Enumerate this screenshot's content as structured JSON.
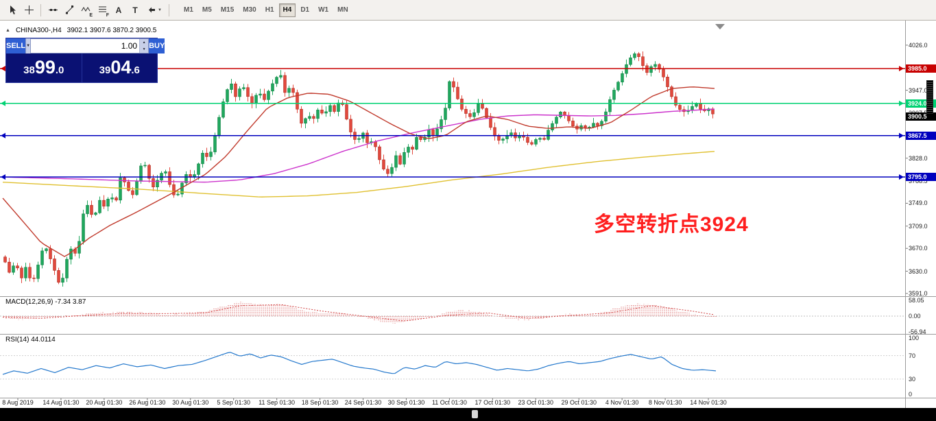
{
  "toolbar": {
    "letters": {
      "text_tool": "A",
      "label_tool": "T",
      "elliott": "E",
      "fibonacci": "F"
    },
    "timeframes": [
      "M1",
      "M5",
      "M15",
      "M30",
      "H1",
      "H4",
      "D1",
      "W1",
      "MN"
    ],
    "active_timeframe": "H4"
  },
  "symbol_header": {
    "symbol": "CHINA300-,H4",
    "ohlc": "3902.1 3907.6 3870.2 3900.5"
  },
  "trade_panel": {
    "sell_label": "SELL",
    "buy_label": "BUY",
    "volume": "1.00",
    "sell_price": {
      "p1": "38",
      "p2": "99",
      "p3": ".0"
    },
    "buy_price": {
      "p1": "39",
      "p2": "04",
      "p3": ".6"
    }
  },
  "annotation": {
    "text": "多空转折点3924",
    "color": "#FF1E1E"
  },
  "levels": [
    {
      "label": "3985.0",
      "value": 3985.0,
      "color": "#C80000"
    },
    {
      "label": "3924.0",
      "value": 3924.0,
      "color": "#00D273"
    },
    {
      "label": "3867.5",
      "value": 3867.5,
      "color": "#0000BE"
    },
    {
      "label": "3795.0",
      "value": 3795.0,
      "color": "#0000BE"
    }
  ],
  "bid": {
    "label": "3900.5",
    "value": 3900.5,
    "bg": "#000000"
  },
  "y_axis": [
    {
      "t": "4026.0",
      "v": 4026
    },
    {
      "t": "3986.5",
      "v": 3986.5
    },
    {
      "t": "3947.0",
      "v": 3947
    },
    {
      "t": "3907.5",
      "v": 3907.5
    },
    {
      "t": "3868.0",
      "v": 3868
    },
    {
      "t": "3828.0",
      "v": 3828
    },
    {
      "t": "3788.5",
      "v": 3788.5
    },
    {
      "t": "3749.0",
      "v": 3749
    },
    {
      "t": "3709.0",
      "v": 3709
    },
    {
      "t": "3670.0",
      "v": 3670
    },
    {
      "t": "3630.0",
      "v": 3630
    },
    {
      "t": "3591.0",
      "v": 3591
    }
  ],
  "x_axis": [
    "8 Aug 2019",
    "14 Aug 01:30",
    "20 Aug 01:30",
    "26 Aug 01:30",
    "30 Aug 01:30",
    "5 Sep 01:30",
    "11 Sep 01:30",
    "18 Sep 01:30",
    "24 Sep 01:30",
    "30 Sep 01:30",
    "11 Oct 01:30",
    "17 Oct 01:30",
    "23 Oct 01:30",
    "29 Oct 01:30",
    "4 Nov 01:30",
    "8 Nov 01:30",
    "14 Nov 01:30"
  ],
  "colors": {
    "up": "#1FA75D",
    "up_edge": "#0f7a3e",
    "down": "#E2483D",
    "down_edge": "#a32418",
    "ma_fast": "#C0392B",
    "ma_mid": "#CC33CC",
    "ma_slow": "#E0C030",
    "rsi": "#2277CC",
    "macd": "#D04040"
  },
  "chart_data": {
    "type": "candlestick",
    "symbol": "CHINA300-",
    "timeframe": "H4",
    "price_path": [
      [
        4,
        3655
      ],
      [
        14,
        3625
      ],
      [
        22,
        3648
      ],
      [
        30,
        3615
      ],
      [
        38,
        3640
      ],
      [
        46,
        3605
      ],
      [
        56,
        3645
      ],
      [
        64,
        3678
      ],
      [
        72,
        3655
      ],
      [
        80,
        3628
      ],
      [
        88,
        3600
      ],
      [
        96,
        3648
      ],
      [
        104,
        3672
      ],
      [
        112,
        3655
      ],
      [
        120,
        3728
      ],
      [
        128,
        3748
      ],
      [
        136,
        3718
      ],
      [
        144,
        3756
      ],
      [
        152,
        3742
      ],
      [
        160,
        3765
      ],
      [
        168,
        3748
      ],
      [
        176,
        3800
      ],
      [
        184,
        3778
      ],
      [
        192,
        3760
      ],
      [
        200,
        3792
      ],
      [
        208,
        3828
      ],
      [
        216,
        3795
      ],
      [
        224,
        3775
      ],
      [
        232,
        3798
      ],
      [
        240,
        3808
      ],
      [
        248,
        3778
      ],
      [
        256,
        3755
      ],
      [
        264,
        3782
      ],
      [
        272,
        3802
      ],
      [
        280,
        3790
      ],
      [
        288,
        3815
      ],
      [
        296,
        3840
      ],
      [
        304,
        3825
      ],
      [
        312,
        3862
      ],
      [
        320,
        3905
      ],
      [
        328,
        3940
      ],
      [
        336,
        3962
      ],
      [
        344,
        3932
      ],
      [
        352,
        3960
      ],
      [
        360,
        3938
      ],
      [
        368,
        3922
      ],
      [
        376,
        3948
      ],
      [
        384,
        3928
      ],
      [
        392,
        3948
      ],
      [
        400,
        3965
      ],
      [
        408,
        3978
      ],
      [
        416,
        3938
      ],
      [
        424,
        3958
      ],
      [
        432,
        3918
      ],
      [
        440,
        3885
      ],
      [
        448,
        3905
      ],
      [
        456,
        3895
      ],
      [
        464,
        3915
      ],
      [
        472,
        3902
      ],
      [
        480,
        3922
      ],
      [
        488,
        3908
      ],
      [
        496,
        3935
      ],
      [
        504,
        3900
      ],
      [
        512,
        3870
      ],
      [
        520,
        3855
      ],
      [
        528,
        3875
      ],
      [
        536,
        3852
      ],
      [
        544,
        3860
      ],
      [
        552,
        3828
      ],
      [
        560,
        3806
      ],
      [
        568,
        3798
      ],
      [
        576,
        3835
      ],
      [
        584,
        3815
      ],
      [
        592,
        3852
      ],
      [
        600,
        3840
      ],
      [
        608,
        3868
      ],
      [
        616,
        3856
      ],
      [
        624,
        3880
      ],
      [
        632,
        3865
      ],
      [
        640,
        3888
      ],
      [
        648,
        3908
      ],
      [
        656,
        3970
      ],
      [
        664,
        3942
      ],
      [
        672,
        3915
      ],
      [
        680,
        3905
      ],
      [
        688,
        3898
      ],
      [
        696,
        3924
      ],
      [
        704,
        3914
      ],
      [
        712,
        3890
      ],
      [
        720,
        3868
      ],
      [
        728,
        3858
      ],
      [
        736,
        3864
      ],
      [
        744,
        3874
      ],
      [
        752,
        3862
      ],
      [
        760,
        3870
      ],
      [
        768,
        3856
      ],
      [
        776,
        3852
      ],
      [
        784,
        3866
      ],
      [
        792,
        3858
      ],
      [
        800,
        3880
      ],
      [
        808,
        3894
      ],
      [
        816,
        3910
      ],
      [
        824,
        3902
      ],
      [
        832,
        3888
      ],
      [
        840,
        3878
      ],
      [
        848,
        3886
      ],
      [
        856,
        3878
      ],
      [
        864,
        3890
      ],
      [
        872,
        3884
      ],
      [
        880,
        3898
      ],
      [
        888,
        3928
      ],
      [
        896,
        3950
      ],
      [
        904,
        3968
      ],
      [
        912,
        3990
      ],
      [
        920,
        4006
      ],
      [
        928,
        4014
      ],
      [
        936,
        3992
      ],
      [
        944,
        3976
      ],
      [
        952,
        3996
      ],
      [
        960,
        3986
      ],
      [
        968,
        3968
      ],
      [
        976,
        3944
      ],
      [
        984,
        3922
      ],
      [
        992,
        3912
      ],
      [
        1000,
        3908
      ],
      [
        1008,
        3918
      ],
      [
        1016,
        3924
      ],
      [
        1024,
        3908
      ],
      [
        1032,
        3916
      ],
      [
        1040,
        3904
      ],
      [
        1044,
        3900.5
      ]
    ],
    "ma_red": [
      [
        4,
        3758
      ],
      [
        30,
        3722
      ],
      [
        60,
        3680
      ],
      [
        95,
        3655
      ],
      [
        130,
        3688
      ],
      [
        160,
        3710
      ],
      [
        200,
        3734
      ],
      [
        250,
        3766
      ],
      [
        300,
        3800
      ],
      [
        330,
        3832
      ],
      [
        360,
        3875
      ],
      [
        390,
        3916
      ],
      [
        420,
        3934
      ],
      [
        450,
        3942
      ],
      [
        480,
        3940
      ],
      [
        510,
        3928
      ],
      [
        540,
        3908
      ],
      [
        570,
        3888
      ],
      [
        600,
        3870
      ],
      [
        625,
        3862
      ],
      [
        650,
        3868
      ],
      [
        680,
        3892
      ],
      [
        710,
        3902
      ],
      [
        740,
        3896
      ],
      [
        770,
        3884
      ],
      [
        800,
        3880
      ],
      [
        830,
        3883
      ],
      [
        860,
        3880
      ],
      [
        890,
        3890
      ],
      [
        920,
        3912
      ],
      [
        950,
        3936
      ],
      [
        980,
        3950
      ],
      [
        1010,
        3953
      ],
      [
        1044,
        3950
      ]
    ],
    "ma_magenta": [
      [
        4,
        3795
      ],
      [
        100,
        3792
      ],
      [
        200,
        3788
      ],
      [
        300,
        3786
      ],
      [
        350,
        3790
      ],
      [
        400,
        3801
      ],
      [
        450,
        3818
      ],
      [
        500,
        3840
      ],
      [
        550,
        3858
      ],
      [
        600,
        3872
      ],
      [
        650,
        3884
      ],
      [
        700,
        3896
      ],
      [
        740,
        3902
      ],
      [
        780,
        3904
      ],
      [
        820,
        3903
      ],
      [
        860,
        3902
      ],
      [
        900,
        3903
      ],
      [
        940,
        3906
      ],
      [
        980,
        3910
      ],
      [
        1044,
        3914
      ]
    ],
    "ma_yellow": [
      [
        4,
        3786
      ],
      [
        100,
        3780
      ],
      [
        200,
        3774
      ],
      [
        300,
        3766
      ],
      [
        380,
        3760
      ],
      [
        450,
        3762
      ],
      [
        520,
        3768
      ],
      [
        590,
        3778
      ],
      [
        660,
        3790
      ],
      [
        730,
        3800
      ],
      [
        800,
        3812
      ],
      [
        870,
        3822
      ],
      [
        940,
        3830
      ],
      [
        1000,
        3836
      ],
      [
        1044,
        3840
      ]
    ]
  },
  "macd": {
    "title": "MACD(12,26,9) -7.34 3.87",
    "value": -7.34,
    "signal_value": 3.87,
    "axis": [
      "58.05",
      "0.00",
      "-56.94"
    ],
    "hist": [
      [
        4,
        -6
      ],
      [
        30,
        -12
      ],
      [
        60,
        -9
      ],
      [
        90,
        -2
      ],
      [
        120,
        8
      ],
      [
        150,
        12
      ],
      [
        180,
        15
      ],
      [
        210,
        12
      ],
      [
        240,
        7
      ],
      [
        270,
        9
      ],
      [
        300,
        18
      ],
      [
        330,
        38
      ],
      [
        350,
        52
      ],
      [
        370,
        46
      ],
      [
        390,
        40
      ],
      [
        410,
        44
      ],
      [
        430,
        30
      ],
      [
        450,
        16
      ],
      [
        470,
        10
      ],
      [
        490,
        14
      ],
      [
        510,
        4
      ],
      [
        530,
        -6
      ],
      [
        550,
        -16
      ],
      [
        570,
        -26
      ],
      [
        590,
        -20
      ],
      [
        610,
        -10
      ],
      [
        630,
        -4
      ],
      [
        650,
        14
      ],
      [
        670,
        22
      ],
      [
        690,
        18
      ],
      [
        710,
        8
      ],
      [
        730,
        -6
      ],
      [
        750,
        -12
      ],
      [
        770,
        -13
      ],
      [
        790,
        -9
      ],
      [
        810,
        0
      ],
      [
        830,
        8
      ],
      [
        850,
        4
      ],
      [
        870,
        8
      ],
      [
        890,
        22
      ],
      [
        910,
        36
      ],
      [
        930,
        46
      ],
      [
        950,
        42
      ],
      [
        970,
        34
      ],
      [
        990,
        20
      ],
      [
        1010,
        8
      ],
      [
        1030,
        -2
      ],
      [
        1044,
        -7.3
      ]
    ],
    "signal": [
      [
        4,
        -4
      ],
      [
        60,
        -8
      ],
      [
        120,
        2
      ],
      [
        180,
        10
      ],
      [
        240,
        9
      ],
      [
        300,
        12
      ],
      [
        350,
        38
      ],
      [
        410,
        42
      ],
      [
        470,
        18
      ],
      [
        530,
        0
      ],
      [
        590,
        -18
      ],
      [
        650,
        2
      ],
      [
        710,
        12
      ],
      [
        770,
        -8
      ],
      [
        830,
        2
      ],
      [
        890,
        12
      ],
      [
        950,
        38
      ],
      [
        1010,
        18
      ],
      [
        1044,
        3.9
      ]
    ]
  },
  "rsi": {
    "title": "RSI(14) 44.0114",
    "value": 44.0114,
    "axis": [
      "100",
      "70",
      "30",
      "0"
    ],
    "line": [
      [
        4,
        38
      ],
      [
        20,
        44
      ],
      [
        40,
        40
      ],
      [
        60,
        48
      ],
      [
        80,
        41
      ],
      [
        100,
        50
      ],
      [
        120,
        46
      ],
      [
        140,
        53
      ],
      [
        160,
        49
      ],
      [
        180,
        56
      ],
      [
        200,
        51
      ],
      [
        220,
        54
      ],
      [
        240,
        48
      ],
      [
        260,
        53
      ],
      [
        280,
        55
      ],
      [
        300,
        62
      ],
      [
        320,
        70
      ],
      [
        335,
        76
      ],
      [
        350,
        69
      ],
      [
        365,
        73
      ],
      [
        380,
        66
      ],
      [
        395,
        71
      ],
      [
        410,
        68
      ],
      [
        425,
        61
      ],
      [
        440,
        55
      ],
      [
        455,
        60
      ],
      [
        470,
        62
      ],
      [
        485,
        64
      ],
      [
        500,
        58
      ],
      [
        515,
        52
      ],
      [
        530,
        49
      ],
      [
        545,
        47
      ],
      [
        560,
        42
      ],
      [
        575,
        39
      ],
      [
        590,
        50
      ],
      [
        605,
        47
      ],
      [
        620,
        53
      ],
      [
        635,
        50
      ],
      [
        650,
        60
      ],
      [
        665,
        56
      ],
      [
        680,
        58
      ],
      [
        695,
        55
      ],
      [
        710,
        50
      ],
      [
        725,
        45
      ],
      [
        740,
        48
      ],
      [
        755,
        46
      ],
      [
        770,
        44
      ],
      [
        785,
        47
      ],
      [
        800,
        53
      ],
      [
        815,
        57
      ],
      [
        830,
        60
      ],
      [
        845,
        56
      ],
      [
        860,
        58
      ],
      [
        875,
        60
      ],
      [
        890,
        65
      ],
      [
        905,
        69
      ],
      [
        920,
        72
      ],
      [
        935,
        68
      ],
      [
        950,
        64
      ],
      [
        965,
        68
      ],
      [
        980,
        55
      ],
      [
        995,
        48
      ],
      [
        1010,
        45
      ],
      [
        1025,
        46
      ],
      [
        1044,
        44
      ]
    ]
  }
}
